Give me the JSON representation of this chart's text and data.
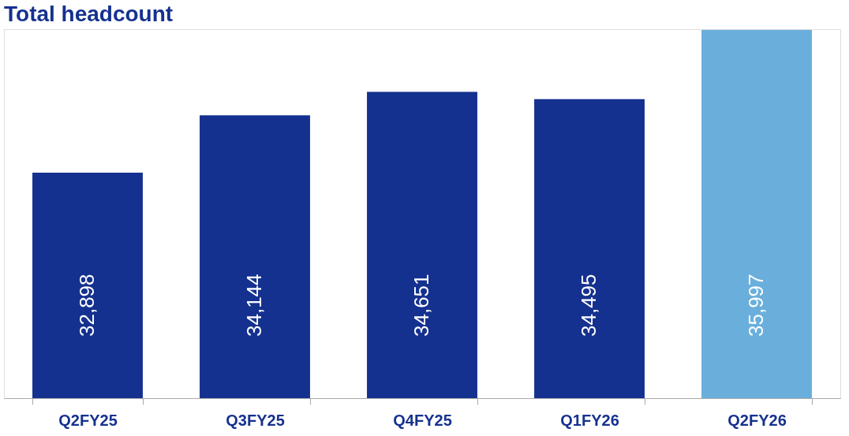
{
  "chart_data": {
    "type": "bar",
    "title": "Total headcount",
    "categories": [
      "Q2FY25",
      "Q3FY25",
      "Q4FY25",
      "Q1FY26",
      "Q2FY26"
    ],
    "values": [
      32898,
      34144,
      34651,
      34495,
      35997
    ],
    "value_labels": [
      "32,898",
      "34,144",
      "34,651",
      "34,495",
      "35,997"
    ],
    "colors": [
      "#15318f",
      "#15318f",
      "#15318f",
      "#15318f",
      "#6aafdc"
    ],
    "tick_labels": "x"
  }
}
